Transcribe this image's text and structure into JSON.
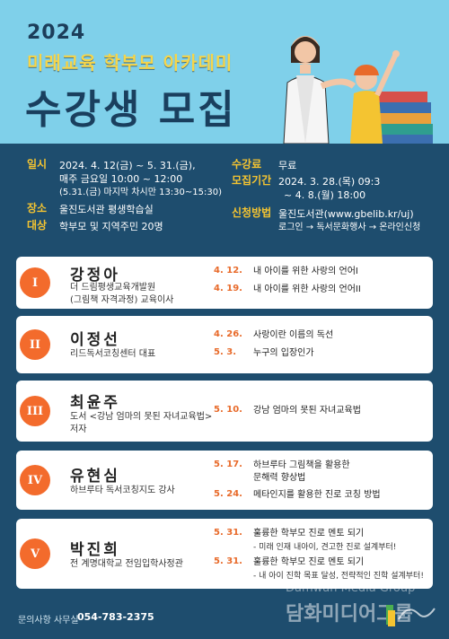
{
  "header": {
    "year": "2024",
    "subtitle": "미래교육 학부모 아카데미",
    "title": "수강생 모집"
  },
  "info": {
    "schedule_label": "일시",
    "schedule_line1": "2024. 4. 12(금) ~ 5. 31.(금),",
    "schedule_line2": "매주 금요일 10:00 ~ 12:00",
    "schedule_line3": "(5.31.(금) 마지막 차시만 13:30~15:30)",
    "place_label": "장소",
    "place_value": "울진도서관 평생학습실",
    "target_label": "대상",
    "target_value": "학부모 및 지역주민 20명",
    "fee_label": "수강료",
    "fee_value": "무료",
    "period_label": "모집기간",
    "period_line1": "2024. 3. 28.(목) 09:3",
    "period_line2": "~ 4. 8.(월) 18:00",
    "apply_label": "신청방법",
    "apply_line1": "울진도서관(www.gbelib.kr/uj)",
    "apply_line2": "로그인 → 독서문화행사 → 온라인신청"
  },
  "lectures": [
    {
      "numeral": "I",
      "name": "강정아",
      "desc1": "더 드림평생교육개발원",
      "desc2": "(그림책 자격과정) 교육이사",
      "sessions": [
        {
          "date": "4. 12.",
          "title": "내 아이를 위한 사랑의 언어I"
        },
        {
          "date": "4. 19.",
          "title": "내 아이를 위한 사랑의 언어II"
        }
      ]
    },
    {
      "numeral": "II",
      "name": "이정선",
      "desc1": "리드독서코칭센터 대표",
      "sessions": [
        {
          "date": "4. 26.",
          "title": "사랑이란 이름의 독선"
        },
        {
          "date": "5. 3.",
          "title": "누구의 입장인가"
        }
      ]
    },
    {
      "numeral": "III",
      "name": "최윤주",
      "desc1": "도서 <강남 엄마의 못된 자녀교육법>",
      "desc2": "저자",
      "sessions": [
        {
          "date": "5. 10.",
          "title": "강남 엄마의 못된 자녀교육법"
        }
      ]
    },
    {
      "numeral": "IV",
      "name": "유현심",
      "desc1": "하브루타 독서코칭지도 강사",
      "sessions": [
        {
          "date": "5. 17.",
          "title": "하브루타 그림책을 활용한",
          "title2": "문해력 향상법"
        },
        {
          "date": "5. 24.",
          "title": "메타인지를 활용한 진로 코칭 방법"
        }
      ]
    },
    {
      "numeral": "V",
      "name": "박진희",
      "desc1": "전 계명대학교 전임입학사정관",
      "sessions": [
        {
          "date": "5. 31.",
          "title": "훌륭한 학부모 진로 멘토 되기",
          "sub": "- 미래 인재 내아이, 견고한 진로 설계부터!"
        },
        {
          "date": "5. 31.",
          "title": "훌륭한 학부모 진로 멘토 되기",
          "sub": "- 내 아이 진학 목표 달성, 전략적인 진학 설계부터!"
        }
      ]
    }
  ],
  "footer": {
    "contact_label": "문의사항 사무실",
    "phone": "054-783-2375",
    "watermark_en": "Damwah Media Group",
    "watermark_ko": "담화미디어그룹"
  },
  "colors": {
    "navy_bg": "#1e4d6e",
    "sky": "#7fd0ea",
    "accent_orange": "#f36b2c",
    "label_yellow": "#f4c431"
  }
}
